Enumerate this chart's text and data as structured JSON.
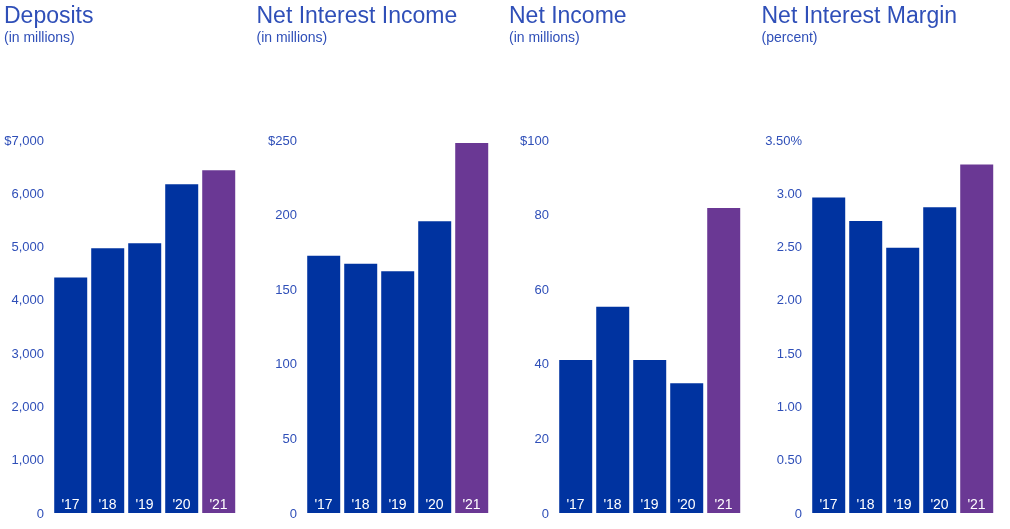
{
  "chart_data": [
    {
      "type": "bar",
      "title": "Deposits",
      "subtitle": "(in millions)",
      "categories": [
        "'17",
        "'18",
        "'19",
        "'20",
        "'21"
      ],
      "values": [
        4420,
        4970,
        5060,
        6170,
        6430
      ],
      "colors": [
        "#0033a0",
        "#0033a0",
        "#0033a0",
        "#0033a0",
        "#6a3894"
      ],
      "ylim": [
        0,
        7000
      ],
      "yticks": [
        0,
        {
          "value": 1000,
          "label": "1,000"
        },
        {
          "value": 2000,
          "label": "2,000"
        },
        {
          "value": 3000,
          "label": "3,000"
        },
        {
          "value": 4000,
          "label": "4,000"
        },
        {
          "value": 5000,
          "label": "5,000"
        },
        {
          "value": 6000,
          "label": "6,000"
        },
        {
          "value": 7000,
          "label": "$7,000"
        }
      ],
      "grid": false
    },
    {
      "type": "bar",
      "title": "Net Interest Income",
      "subtitle": "(in millions)",
      "categories": [
        "'17",
        "'18",
        "'19",
        "'20",
        "'21"
      ],
      "values": [
        172.5,
        167,
        162,
        195.5,
        248
      ],
      "colors": [
        "#0033a0",
        "#0033a0",
        "#0033a0",
        "#0033a0",
        "#6a3894"
      ],
      "ylim": [
        0,
        250
      ],
      "yticks": [
        0,
        50,
        100,
        150,
        200,
        {
          "value": 250,
          "label": "$250"
        }
      ],
      "grid": false
    },
    {
      "type": "bar",
      "title": "Net Income",
      "subtitle": "(in millions)",
      "categories": [
        "'17",
        "'18",
        "'19",
        "'20",
        "'21"
      ],
      "values": [
        41,
        55.3,
        41,
        34.8,
        81.8
      ],
      "colors": [
        "#0033a0",
        "#0033a0",
        "#0033a0",
        "#0033a0",
        "#6a3894"
      ],
      "ylim": [
        0,
        100
      ],
      "yticks": [
        0,
        20,
        40,
        60,
        80,
        {
          "value": 100,
          "label": "$100"
        }
      ],
      "grid": false
    },
    {
      "type": "bar",
      "title": "Net Interest Margin",
      "subtitle": "(percent)",
      "categories": [
        "'17",
        "'18",
        "'19",
        "'20",
        "'21"
      ],
      "values": [
        2.96,
        2.74,
        2.49,
        2.87,
        3.27
      ],
      "colors": [
        "#0033a0",
        "#0033a0",
        "#0033a0",
        "#0033a0",
        "#6a3894"
      ],
      "ylim": [
        0,
        3.5
      ],
      "yticks": [
        0,
        {
          "value": 0.5,
          "label": "0.50"
        },
        {
          "value": 1,
          "label": "1.00"
        },
        {
          "value": 1.5,
          "label": "1.50"
        },
        {
          "value": 2,
          "label": "2.00"
        },
        {
          "value": 2.5,
          "label": "2.50"
        },
        {
          "value": 3,
          "label": "3.00"
        },
        {
          "value": 3.5,
          "label": "3.50%"
        }
      ],
      "grid": false
    }
  ]
}
